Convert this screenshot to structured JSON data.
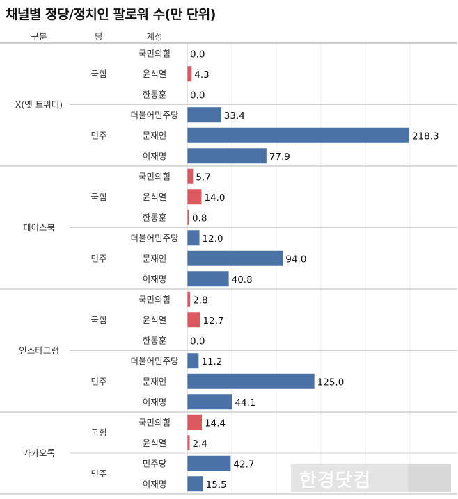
{
  "title": "채널별 정당/정치인 팔로워 수(만 단위)",
  "headers": {
    "group": "구분",
    "party": "당",
    "account": "계정"
  },
  "colors": {
    "국힘": "#dc5a5f",
    "민주": "#4a72a6"
  },
  "watermark": "한경닷컴",
  "chart_data": {
    "type": "bar",
    "orientation": "horizontal",
    "title": "채널별 정당/정치인 팔로워 수(만 단위)",
    "unit": "만",
    "xlim": [
      0,
      220
    ],
    "groups": [
      {
        "channel": "X(옛 트위터)",
        "parties": [
          {
            "party": "국힘",
            "rows": [
              {
                "label": "국민의힘",
                "value": 0.0,
                "text": "0.0"
              },
              {
                "label": "윤석열",
                "value": 4.3,
                "text": "4.3"
              },
              {
                "label": "한동훈",
                "value": 0.0,
                "text": "0.0"
              }
            ]
          },
          {
            "party": "민주",
            "rows": [
              {
                "label": "더불어민주당",
                "value": 33.4,
                "text": "33.4"
              },
              {
                "label": "문재인",
                "value": 218.3,
                "text": "218.3"
              },
              {
                "label": "이재명",
                "value": 77.9,
                "text": "77.9"
              }
            ]
          }
        ]
      },
      {
        "channel": "페이스북",
        "parties": [
          {
            "party": "국힘",
            "rows": [
              {
                "label": "국민의힘",
                "value": 5.7,
                "text": "5.7"
              },
              {
                "label": "윤석열",
                "value": 14.0,
                "text": "14.0"
              },
              {
                "label": "한동훈",
                "value": 0.8,
                "text": "0.8"
              }
            ]
          },
          {
            "party": "민주",
            "rows": [
              {
                "label": "더불어민주당",
                "value": 12.0,
                "text": "12.0"
              },
              {
                "label": "문재인",
                "value": 94.0,
                "text": "94.0"
              },
              {
                "label": "이재명",
                "value": 40.8,
                "text": "40.8"
              }
            ]
          }
        ]
      },
      {
        "channel": "인스타그램",
        "parties": [
          {
            "party": "국힘",
            "rows": [
              {
                "label": "국민의힘",
                "value": 2.8,
                "text": "2.8"
              },
              {
                "label": "윤석열",
                "value": 12.7,
                "text": "12.7"
              },
              {
                "label": "한동훈",
                "value": 0.0,
                "text": "0.0"
              }
            ]
          },
          {
            "party": "민주",
            "rows": [
              {
                "label": "더불어민주당",
                "value": 11.2,
                "text": "11.2"
              },
              {
                "label": "문재인",
                "value": 125.0,
                "text": "125.0"
              },
              {
                "label": "이재명",
                "value": 44.1,
                "text": "44.1"
              }
            ]
          }
        ]
      },
      {
        "channel": "카카오톡",
        "parties": [
          {
            "party": "국힘",
            "rows": [
              {
                "label": "국민의힘",
                "value": 14.4,
                "text": "14.4"
              },
              {
                "label": "윤석열",
                "value": 2.4,
                "text": "2.4"
              }
            ]
          },
          {
            "party": "민주",
            "rows": [
              {
                "label": "민주당",
                "value": 42.7,
                "text": "42.7"
              },
              {
                "label": "이재명",
                "value": 15.5,
                "text": "15.5"
              }
            ]
          }
        ]
      }
    ]
  }
}
